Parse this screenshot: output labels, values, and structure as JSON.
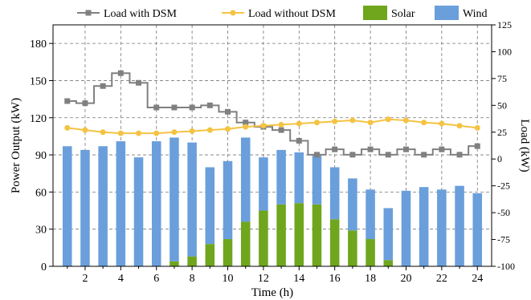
{
  "chart_data": {
    "type": "bar",
    "xlabel": "Time (h)",
    "ylabel_left": "Power Output (kW)",
    "ylabel_right": "Load (kW)",
    "x": [
      1,
      2,
      3,
      4,
      5,
      6,
      7,
      8,
      9,
      10,
      11,
      12,
      13,
      14,
      15,
      16,
      17,
      18,
      19,
      20,
      21,
      22,
      23,
      24
    ],
    "x_ticks": [
      2,
      4,
      6,
      8,
      10,
      12,
      14,
      16,
      18,
      20,
      22,
      24
    ],
    "x_range": [
      0.2,
      24.8
    ],
    "y_left_range": [
      0,
      195
    ],
    "y_left_ticks": [
      0,
      30,
      60,
      90,
      120,
      150,
      180
    ],
    "y_right_range": [
      -100,
      125
    ],
    "y_right_ticks": [
      -100,
      -75,
      -50,
      -25,
      0,
      25,
      50,
      75,
      100,
      125
    ],
    "grid": true,
    "legend_position": "top",
    "legend": [
      {
        "label": "Load with DSM",
        "kind": "line-square",
        "color": "#808080"
      },
      {
        "label": "Load without DSM",
        "kind": "line-circle",
        "color": "#F5C342"
      },
      {
        "label": "Solar",
        "kind": "box",
        "color": "#6FA61E"
      },
      {
        "label": "Wind",
        "kind": "box",
        "color": "#6A9FDB"
      }
    ],
    "series": [
      {
        "name": "Solar",
        "type": "stacked-bar",
        "axis": "left",
        "color": "#6FA61E",
        "values": [
          0,
          0,
          0,
          0,
          0,
          0,
          4,
          8,
          18,
          22,
          36,
          45,
          50,
          51,
          50,
          38,
          29,
          22,
          5,
          0,
          0,
          0,
          0,
          0
        ]
      },
      {
        "name": "Wind",
        "type": "stacked-bar",
        "axis": "left",
        "color": "#6A9FDB",
        "values": [
          97,
          94,
          97,
          101,
          88,
          101,
          100,
          92,
          62,
          63,
          68,
          43,
          44,
          41,
          40,
          42,
          42,
          40,
          42,
          61,
          64,
          62,
          65,
          59
        ]
      },
      {
        "name": "Load with DSM",
        "type": "step-line",
        "axis": "right",
        "color": "#808080",
        "values": [
          54,
          52,
          68,
          80,
          71,
          48,
          48,
          48,
          50,
          44,
          34,
          30,
          27,
          17,
          4,
          9,
          4,
          9,
          4,
          9,
          4,
          9,
          4,
          12
        ]
      },
      {
        "name": "Load without DSM",
        "type": "line",
        "axis": "right",
        "color": "#F5C342",
        "values": [
          29,
          27,
          25,
          24,
          24,
          24,
          25,
          26,
          27,
          28,
          30,
          31,
          32,
          33,
          34,
          35,
          36,
          34,
          37,
          36,
          34,
          33,
          31,
          29
        ]
      }
    ]
  }
}
